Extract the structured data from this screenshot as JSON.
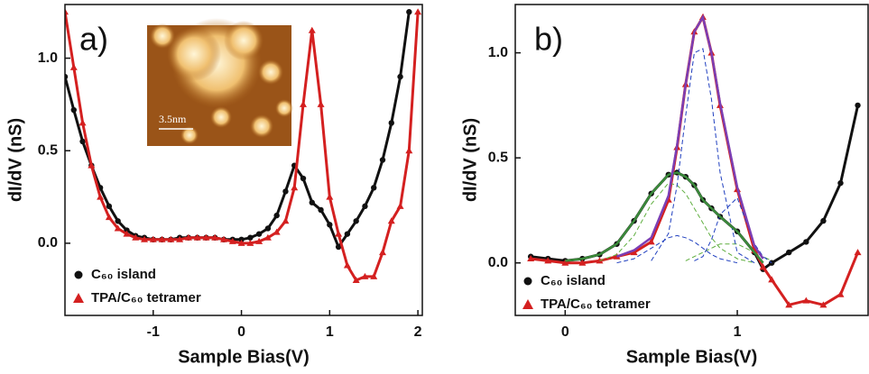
{
  "chart_data": [
    {
      "type": "line",
      "panel_label": "a)",
      "x_label": "Sample Bias(V)",
      "y_label": "dI/dV (nS)",
      "inset_label": "3.5nm",
      "x": [
        -2.0,
        -1.9,
        -1.8,
        -1.7,
        -1.6,
        -1.5,
        -1.4,
        -1.3,
        -1.2,
        -1.1,
        -1.0,
        -0.9,
        -0.8,
        -0.7,
        -0.6,
        -0.5,
        -0.4,
        -0.3,
        -0.2,
        -0.1,
        0,
        0.1,
        0.2,
        0.3,
        0.4,
        0.5,
        0.6,
        0.7,
        0.8,
        0.9,
        1.0,
        1.1,
        1.2,
        1.3,
        1.4,
        1.5,
        1.6,
        1.7,
        1.8,
        1.9,
        2.0
      ],
      "series": [
        {
          "name": "C₆₀ island",
          "color": "#111111",
          "marker": "circle",
          "values": [
            0.9,
            0.72,
            0.55,
            0.42,
            0.3,
            0.2,
            0.12,
            0.07,
            0.04,
            0.03,
            0.02,
            0.02,
            0.02,
            0.03,
            0.03,
            0.03,
            0.03,
            0.03,
            0.02,
            0.02,
            0.02,
            0.03,
            0.05,
            0.08,
            0.15,
            0.28,
            0.42,
            0.35,
            0.22,
            0.18,
            0.1,
            -0.02,
            0.05,
            0.12,
            0.2,
            0.3,
            0.45,
            0.65,
            0.9,
            1.25,
            null
          ]
        },
        {
          "name": "TPA/C₆₀ tetramer",
          "color": "#d42020",
          "marker": "triangle",
          "values": [
            1.25,
            0.95,
            0.65,
            0.42,
            0.25,
            0.14,
            0.08,
            0.05,
            0.03,
            0.02,
            0.02,
            0.02,
            0.02,
            0.02,
            0.03,
            0.03,
            0.03,
            0.03,
            0.02,
            0.01,
            0.0,
            0.0,
            0.01,
            0.03,
            0.06,
            0.12,
            0.3,
            0.75,
            1.15,
            0.75,
            0.25,
            0.05,
            -0.12,
            -0.2,
            -0.18,
            -0.18,
            -0.05,
            0.12,
            0.2,
            0.5,
            1.25
          ]
        }
      ],
      "xlim": [
        -2.0,
        2.05
      ],
      "ylim": [
        -0.39,
        1.29
      ],
      "xticks": [
        -1,
        0,
        1,
        2
      ],
      "yticks": [
        {
          "value": 0,
          "label": "0.0"
        },
        {
          "value": 0.5,
          "label": "0.5"
        },
        {
          "value": 1,
          "label": "1.0"
        }
      ]
    },
    {
      "type": "line",
      "panel_label": "b)",
      "x_label": "Sample Bias(V)",
      "y_label": "dI/dV (nS)",
      "x": [
        -0.2,
        -0.1,
        0,
        0.1,
        0.2,
        0.3,
        0.4,
        0.5,
        0.6,
        0.65,
        0.7,
        0.75,
        0.8,
        0.85,
        0.9,
        1.0,
        1.1,
        1.15,
        1.2,
        1.3,
        1.4,
        1.5,
        1.6,
        1.7
      ],
      "series": [
        {
          "name": "C₆₀ island",
          "color": "#111111",
          "marker": "circle",
          "values": [
            0.03,
            0.02,
            0.01,
            0.02,
            0.04,
            0.09,
            0.2,
            0.33,
            0.42,
            0.43,
            0.41,
            0.37,
            0.3,
            0.26,
            0.22,
            0.15,
            0.05,
            -0.03,
            0.0,
            0.05,
            0.1,
            0.2,
            0.38,
            0.75
          ]
        },
        {
          "name": "TPA/C₆₀ tetramer",
          "color": "#d42020",
          "marker": "triangle",
          "values": [
            0.02,
            0.01,
            0.0,
            0.0,
            0.01,
            0.03,
            0.05,
            0.1,
            0.3,
            0.55,
            0.85,
            1.1,
            1.17,
            1.0,
            0.75,
            0.35,
            0.06,
            -0.02,
            -0.08,
            -0.2,
            -0.18,
            -0.2,
            -0.15,
            0.05
          ]
        },
        {
          "color": "#5fae3f",
          "dash": true,
          "values": [
            null,
            null,
            null,
            null,
            0.01,
            0.04,
            0.13,
            0.28,
            0.38,
            0.37,
            0.33,
            0.26,
            0.19,
            0.12,
            0.07,
            0.02,
            0.0,
            null,
            null,
            null,
            null,
            null,
            null,
            null
          ]
        },
        {
          "color": "#5fae3f",
          "dash": true,
          "values": [
            null,
            null,
            null,
            null,
            null,
            null,
            null,
            null,
            null,
            null,
            0.01,
            0.03,
            0.05,
            0.07,
            0.09,
            0.09,
            0.05,
            0.03,
            0.01,
            null,
            null,
            null,
            null,
            null
          ]
        },
        {
          "color": "#1f3fbf",
          "dash": true,
          "values": [
            null,
            null,
            null,
            null,
            null,
            0.0,
            0.02,
            0.07,
            0.12,
            0.13,
            0.12,
            0.1,
            0.07,
            0.04,
            0.02,
            0.0,
            null,
            null,
            null,
            null,
            null,
            null,
            null,
            null
          ]
        },
        {
          "color": "#1f3fbf",
          "dash": true,
          "values": [
            null,
            null,
            null,
            null,
            null,
            null,
            null,
            0.01,
            0.14,
            0.37,
            0.7,
            1.0,
            1.02,
            0.78,
            0.43,
            0.05,
            0.0,
            null,
            null,
            null,
            null,
            null,
            null,
            null
          ]
        },
        {
          "color": "#1f3fbf",
          "dash": true,
          "values": [
            null,
            null,
            null,
            null,
            null,
            null,
            null,
            null,
            null,
            null,
            null,
            0.01,
            0.03,
            0.11,
            0.23,
            0.31,
            0.09,
            0.03,
            0.0,
            null,
            null,
            null,
            null,
            null
          ]
        },
        {
          "color": "#3a8a3a",
          "values": [
            null,
            null,
            0.01,
            0.02,
            0.04,
            0.09,
            0.2,
            0.33,
            0.42,
            0.43,
            0.41,
            0.37,
            0.3,
            0.26,
            0.22,
            0.15,
            0.05,
            0.0,
            null,
            null,
            null,
            null,
            null,
            null
          ]
        },
        {
          "color": "#7b3fb5",
          "values": [
            null,
            null,
            null,
            null,
            null,
            0.03,
            0.06,
            0.12,
            0.32,
            0.56,
            0.85,
            1.1,
            1.17,
            1.0,
            0.76,
            0.36,
            0.08,
            0.02,
            null,
            null,
            null,
            null,
            null,
            null
          ]
        }
      ],
      "xlim": [
        -0.29,
        1.76
      ],
      "ylim": [
        -0.25,
        1.23
      ],
      "xticks": [
        0,
        1
      ],
      "yticks": [
        {
          "value": 0,
          "label": "0.0"
        },
        {
          "value": 0.5,
          "label": "0.5"
        },
        {
          "value": 1,
          "label": "1.0"
        }
      ]
    }
  ]
}
